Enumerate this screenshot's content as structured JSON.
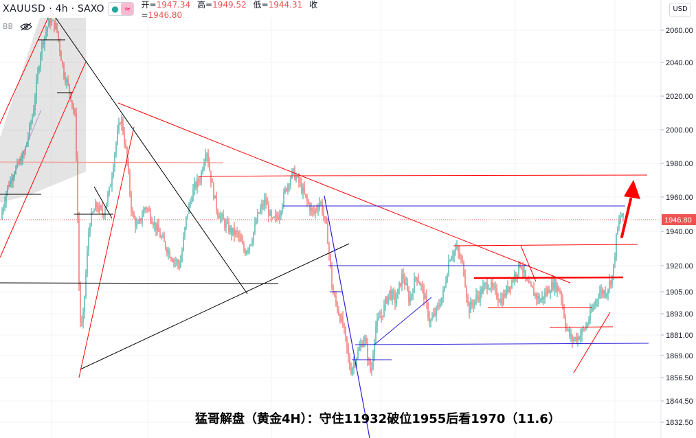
{
  "header": {
    "symbol": "XAUUSD",
    "interval": "4h",
    "source": "SAXO",
    "open_label": "开",
    "open": "1947.34",
    "high_label": "高",
    "high": "1949.52",
    "low_label": "低",
    "low": "1944.31",
    "close_label": "收",
    "close": "1946.80"
  },
  "indicator": {
    "name": "BB",
    "icon": "eye-off-icon"
  },
  "currency_button": "USD",
  "last_price_label": "1946.80",
  "caption": "猛哥解盘（黄金4H）：守住11932破位1955后看1970（11.6）",
  "colors": {
    "up": "#26a69a",
    "down": "#ef5350",
    "trend_red": "#ff0000",
    "trend_blue": "#2b1fd9",
    "trend_black": "#000000",
    "arrow": "#ff0000"
  },
  "chart_data": {
    "type": "candlestick",
    "y_ticks": [
      "2060.00",
      "2040.00",
      "2020.00",
      "2000.00",
      "1980.00",
      "1960.00",
      "1940.00",
      "1920.00",
      "1905.00",
      "1893.00",
      "1881.00",
      "1869.00",
      "1856.50",
      "1844.50",
      "1832.50"
    ],
    "y_scale": "log",
    "last_price": 1946.8,
    "levels": {
      "red_horizontal": [
        1980,
        1971,
        1931,
        1914,
        1897,
        1886
      ],
      "blue_horizontal": [
        1954,
        1919,
        1876
      ],
      "black_horizontal": [
        1910,
        1962
      ]
    },
    "trend_lines": {
      "red_descending": [
        [
          2017,
          1970
        ]
      ],
      "black_descending": [
        [
          2072,
          1904
        ]
      ],
      "black_ascending": [
        [
          1862,
          1934
        ]
      ]
    },
    "projection": "up"
  }
}
